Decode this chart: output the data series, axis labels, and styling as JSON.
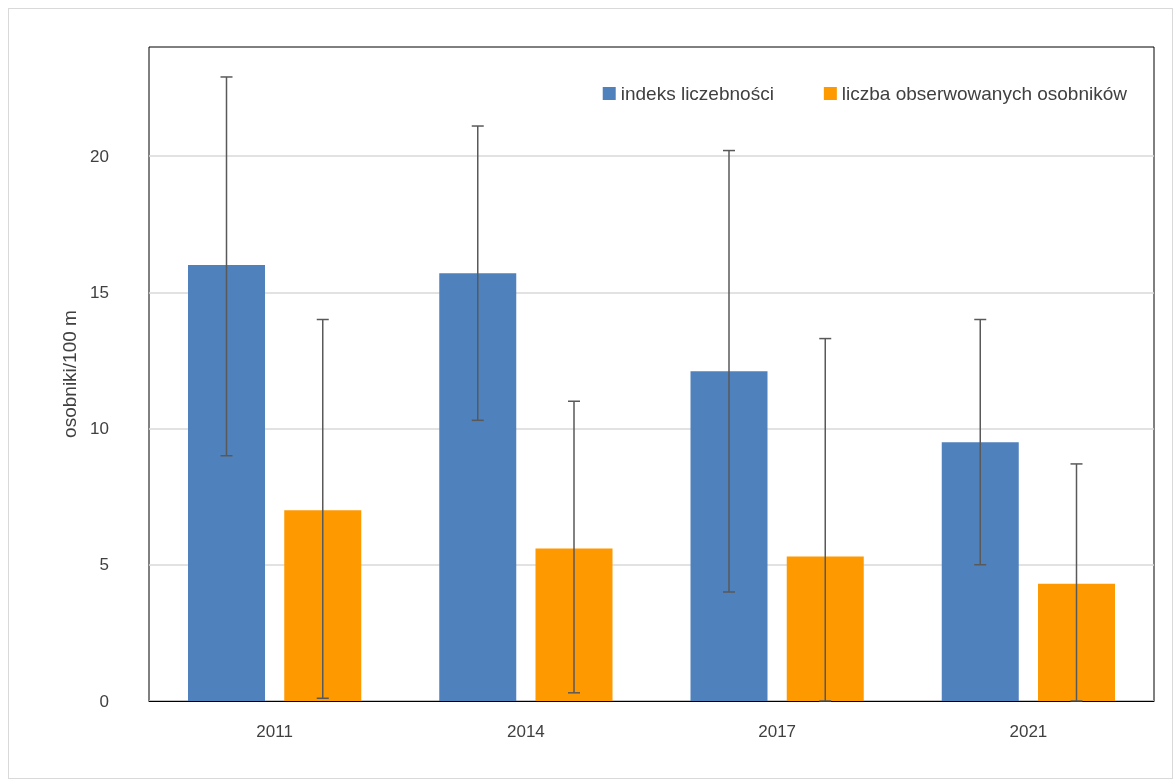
{
  "chart_data": {
    "type": "bar",
    "ylabel": "osobniki/100 m",
    "categories": [
      "2011",
      "2014",
      "2017",
      "2021"
    ],
    "series": [
      {
        "name": "indeks liczebności",
        "color": "#4f81bd",
        "values": [
          16.0,
          15.7,
          12.1,
          9.5
        ],
        "errors": [
          [
            9.0,
            22.9
          ],
          [
            10.3,
            21.1
          ],
          [
            4.0,
            20.2
          ],
          [
            5.0,
            14.0
          ]
        ]
      },
      {
        "name": "liczba obserwowanych osobników",
        "color": "#ff9900",
        "values": [
          7.0,
          5.6,
          5.3,
          4.3
        ],
        "errors": [
          [
            0.1,
            14.0
          ],
          [
            0.3,
            11.0
          ],
          [
            0.0,
            13.3
          ],
          [
            0.0,
            8.7
          ]
        ]
      }
    ],
    "ylim": [
      0,
      24
    ],
    "yticks": [
      0,
      5,
      10,
      15,
      20
    ],
    "grid": "y",
    "legend": "top right"
  }
}
